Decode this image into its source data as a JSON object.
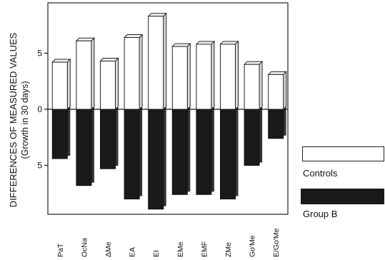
{
  "chart_data": {
    "type": "bar",
    "title": "",
    "ylabel_line1": "DIFFERENCES OF MEASURED VALUES",
    "ylabel_line2": "(Growth in 30 days)",
    "xlabel": "",
    "categories": [
      "PaT",
      "OcNa",
      "ΔMe",
      "EA",
      "EI",
      "EMe",
      "EMF",
      "ZMe",
      "Go'Me",
      "E/Go'Me"
    ],
    "series": [
      {
        "name": "Controls",
        "values": [
          4.2,
          6.1,
          4.3,
          6.4,
          8.3,
          5.6,
          5.8,
          5.8,
          4.0,
          3.1
        ],
        "color": "#ffffff"
      },
      {
        "name": "Group B",
        "values": [
          -4.4,
          -6.8,
          -5.3,
          -8.0,
          -8.9,
          -7.6,
          -7.6,
          -8.0,
          -5.0,
          -2.6
        ],
        "color": "#1a1a1a"
      }
    ],
    "yticks": [
      {
        "value": 5,
        "label": "5"
      },
      {
        "value": 0,
        "label": "0"
      },
      {
        "value": -5,
        "label": "5"
      }
    ],
    "ylim": [
      -9.6,
      9.7
    ],
    "grid": false,
    "legend_position": "right"
  }
}
